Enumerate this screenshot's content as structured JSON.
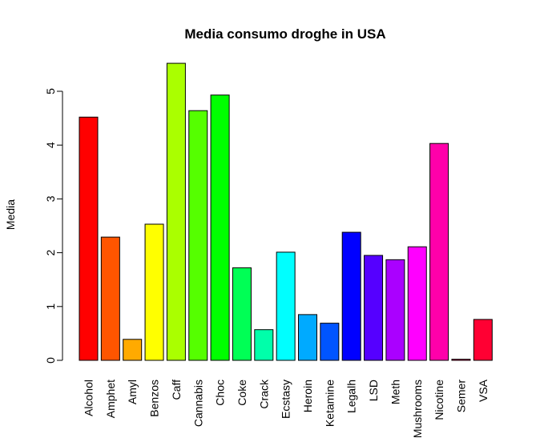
{
  "chart_data": {
    "type": "bar",
    "title": "Media consumo droghe in USA",
    "xlabel": "",
    "ylabel": "Media",
    "categories": [
      "Alcohol",
      "Amphet",
      "Amyl",
      "Benzos",
      "Caff",
      "Cannabis",
      "Choc",
      "Coke",
      "Crack",
      "Ecstasy",
      "Heroin",
      "Ketamine",
      "Legalh",
      "LSD",
      "Meth",
      "Mushrooms",
      "Nicotine",
      "Semer",
      "VSA"
    ],
    "values": [
      4.52,
      2.29,
      0.39,
      2.53,
      5.52,
      4.64,
      4.93,
      1.72,
      0.57,
      2.01,
      0.85,
      0.69,
      2.38,
      1.95,
      1.87,
      2.11,
      4.03,
      0.02,
      0.76
    ],
    "colors": [
      "#FF0000",
      "#FF5500",
      "#FFAA00",
      "#FFFF00",
      "#AAFF00",
      "#55FF00",
      "#00FF00",
      "#00FF55",
      "#00FFAA",
      "#00FFFF",
      "#00AAFF",
      "#0055FF",
      "#0000FF",
      "#5500FF",
      "#AA00FF",
      "#FF00FF",
      "#FF00AA",
      "#FF0055",
      "#FF0033"
    ],
    "y_ticks": [
      0,
      1,
      2,
      3,
      4,
      5
    ],
    "ylim": [
      0,
      5.6
    ],
    "grid": false,
    "legend": "none"
  }
}
